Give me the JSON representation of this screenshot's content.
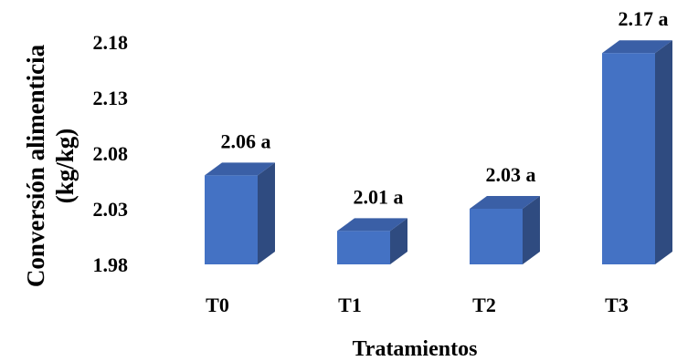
{
  "chart_data": {
    "type": "bar",
    "title": "",
    "xlabel": "Tratamientos",
    "ylabel_lines": [
      "Conversión alimenticia",
      "(kg/kg)"
    ],
    "ylim": [
      1.98,
      2.2
    ],
    "yticks": [
      "1.98",
      "2.03",
      "2.08",
      "2.13",
      "2.18"
    ],
    "categories": [
      "T0",
      "T1",
      "T2",
      "T3"
    ],
    "values": [
      2.06,
      2.01,
      2.03,
      2.17
    ],
    "data_labels": [
      "2.06 a",
      "2.01 a",
      "2.03 a",
      "2.17 a"
    ],
    "grid": false,
    "legend": "none",
    "bar_style": "3d",
    "colors": {
      "bar_front": "#4472C4",
      "bar_top": "#3A5FA6",
      "bar_side": "#2F4B80"
    }
  }
}
